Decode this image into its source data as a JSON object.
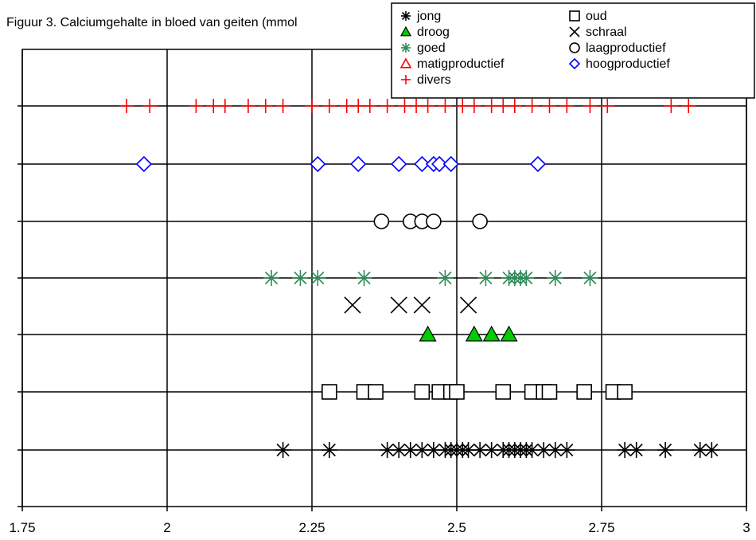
{
  "chart_data": {
    "type": "scatter",
    "title": "Figuur 3. Calciumgehalte in bloed van geiten (mmol",
    "xlabel": "",
    "ylabel": "",
    "xlim": [
      1.75,
      3
    ],
    "x_ticks": [
      "1.75",
      "2",
      "2.25",
      "2.5",
      "2.75",
      "3"
    ],
    "x_tick_values": [
      1.75,
      2,
      2.25,
      2.5,
      2.75,
      3
    ],
    "grid": true,
    "legend_position": "top-right",
    "series": [
      {
        "name": "jong",
        "marker": "asterisk",
        "color": "#000000",
        "row": 1,
        "values": [
          2.2,
          2.28,
          2.38,
          2.4,
          2.42,
          2.44,
          2.46,
          2.48,
          2.49,
          2.5,
          2.51,
          2.52,
          2.54,
          2.56,
          2.58,
          2.59,
          2.6,
          2.61,
          2.62,
          2.63,
          2.65,
          2.67,
          2.69,
          2.79,
          2.81,
          2.86,
          2.92,
          2.94
        ]
      },
      {
        "name": "oud",
        "marker": "square",
        "color": "#000000",
        "row": 2,
        "values": [
          2.28,
          2.34,
          2.36,
          2.44,
          2.47,
          2.49,
          2.5,
          2.58,
          2.63,
          2.65,
          2.66,
          2.72,
          2.77,
          2.79
        ]
      },
      {
        "name": "droog",
        "marker": "triangle-filled",
        "color": "#00cc00",
        "row": 3,
        "values": [
          2.45,
          2.53,
          2.56,
          2.59
        ]
      },
      {
        "name": "schraal",
        "marker": "x",
        "color": "#000000",
        "row": 4,
        "values": [
          2.32,
          2.4,
          2.44,
          2.52
        ]
      },
      {
        "name": "goed",
        "marker": "asterisk",
        "color": "#2e8b57",
        "row": 5,
        "values": [
          2.18,
          2.23,
          2.26,
          2.34,
          2.48,
          2.55,
          2.59,
          2.6,
          2.61,
          2.62,
          2.67,
          2.73
        ]
      },
      {
        "name": "laagproductief",
        "marker": "circle",
        "color": "#000000",
        "row": 6,
        "values": [
          2.37,
          2.42,
          2.44,
          2.46,
          2.54
        ]
      },
      {
        "name": "hoogproductief",
        "marker": "diamond",
        "color": "#0000ff",
        "row": 7,
        "values": [
          1.96,
          2.26,
          2.33,
          2.4,
          2.44,
          2.46,
          2.47,
          2.49,
          2.64
        ]
      },
      {
        "name": "matigproductief",
        "marker": "triangle-open",
        "color": "#ff0000",
        "row": null,
        "values": []
      },
      {
        "name": "divers",
        "marker": "plus",
        "color": "#ff0000",
        "row": 8,
        "values": [
          1.93,
          1.97,
          2.05,
          2.08,
          2.1,
          2.14,
          2.17,
          2.2,
          2.25,
          2.28,
          2.31,
          2.33,
          2.35,
          2.38,
          2.41,
          2.43,
          2.45,
          2.48,
          2.51,
          2.53,
          2.56,
          2.58,
          2.6,
          2.63,
          2.66,
          2.69,
          2.73,
          2.76,
          2.87,
          2.9
        ]
      }
    ],
    "legend_order": [
      [
        "jong",
        "oud"
      ],
      [
        "droog",
        "schraal"
      ],
      [
        "goed",
        "laagproductief"
      ],
      [
        "matigproductief",
        "hoogproductief"
      ],
      [
        "divers",
        null
      ]
    ]
  }
}
